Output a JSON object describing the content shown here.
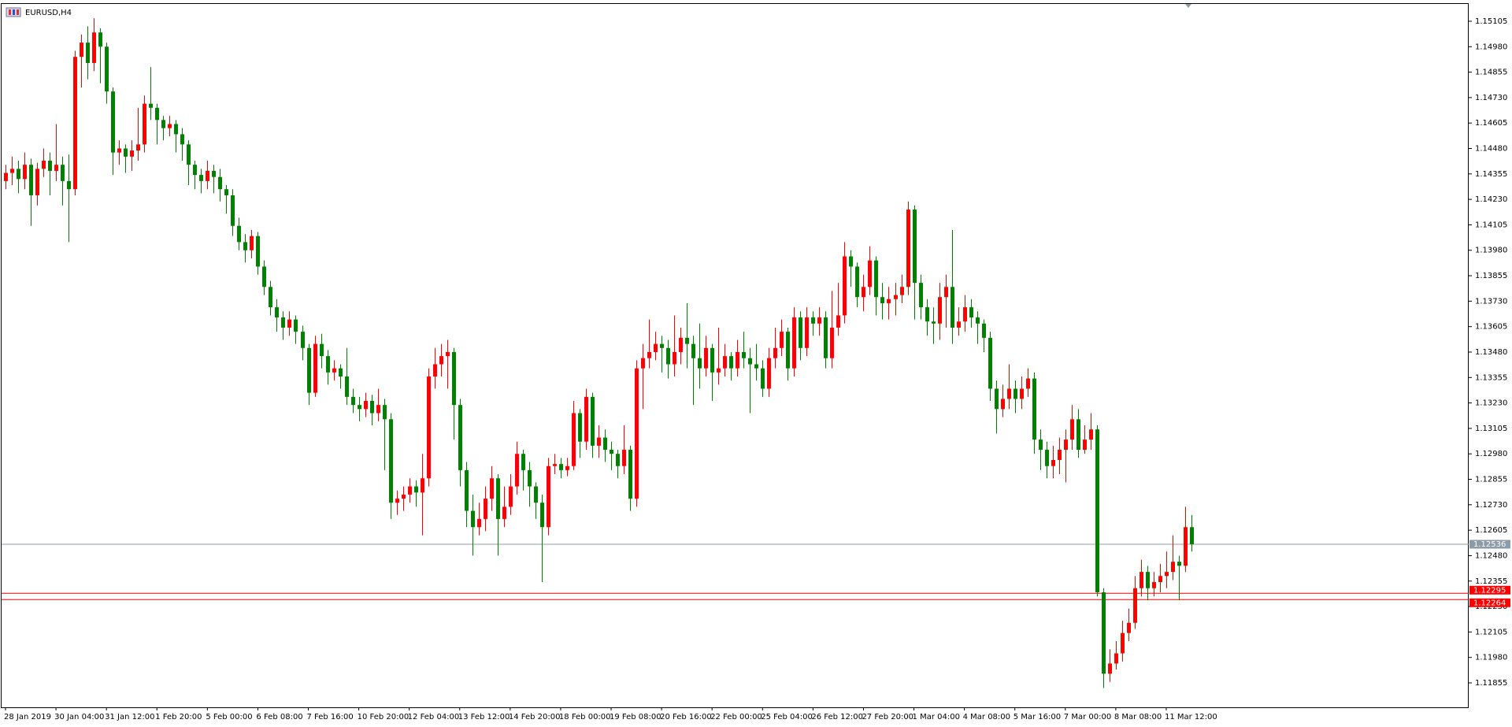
{
  "chart_data": {
    "type": "candlestick",
    "title": "EURUSD,H4",
    "up_color": "#ff0000",
    "down_color": "#008000",
    "ylim": [
      1.11735,
      1.1519
    ],
    "yticks": [
      1.15105,
      {
        "value": 1.1498,
        "label": "1.14980"
      },
      1.14855,
      {
        "value": 1.1473,
        "label": "1.14730"
      },
      1.14605,
      {
        "value": 1.1448,
        "label": "1.14480"
      },
      1.14355,
      {
        "value": 1.1423,
        "label": "1.14230"
      },
      1.14105,
      {
        "value": 1.1398,
        "label": "1.13980"
      },
      1.13855,
      {
        "value": 1.1373,
        "label": "1.13730"
      },
      1.13605,
      {
        "value": 1.1348,
        "label": "1.13480"
      },
      1.13355,
      {
        "value": 1.1323,
        "label": "1.13230"
      },
      1.13105,
      {
        "value": 1.1298,
        "label": "1.12980"
      },
      1.12855,
      {
        "value": 1.1273,
        "label": "1.12730"
      },
      1.12605,
      {
        "value": 1.1248,
        "label": "1.12480"
      },
      1.12355,
      {
        "value": 1.1223,
        "label": "1.12230"
      },
      1.12105,
      {
        "value": 1.1198,
        "label": "1.11980"
      },
      1.11855
    ],
    "levels": [
      {
        "value": 1.12536,
        "color": "#8c9ba8"
      },
      {
        "value": 1.12295,
        "color": "#ff0000"
      },
      {
        "value": 1.12264,
        "color": "#ff0000"
      }
    ],
    "categories": [
      "28 Jan 2019",
      null,
      null,
      null,
      null,
      null,
      null,
      null,
      "30 Jan 04:00",
      null,
      null,
      null,
      null,
      null,
      null,
      null,
      "31 Jan 12:00",
      null,
      null,
      null,
      null,
      null,
      null,
      null,
      "1 Feb 20:00",
      null,
      null,
      null,
      null,
      null,
      null,
      null,
      "5 Feb 00:00",
      null,
      null,
      null,
      null,
      null,
      null,
      null,
      "6 Feb 08:00",
      null,
      null,
      null,
      null,
      null,
      null,
      null,
      "7 Feb 16:00",
      null,
      null,
      null,
      null,
      null,
      null,
      null,
      "10 Feb 20:00",
      null,
      null,
      null,
      null,
      null,
      null,
      null,
      "12 Feb 04:00",
      null,
      null,
      null,
      null,
      null,
      null,
      null,
      "13 Feb 12:00",
      null,
      null,
      null,
      null,
      null,
      null,
      null,
      "14 Feb 20:00",
      null,
      null,
      null,
      null,
      null,
      null,
      null,
      "18 Feb 00:00",
      null,
      null,
      null,
      null,
      null,
      null,
      null,
      "19 Feb 08:00",
      null,
      null,
      null,
      null,
      null,
      null,
      null,
      "20 Feb 16:00",
      null,
      null,
      null,
      null,
      null,
      null,
      null,
      "22 Feb 00:00",
      null,
      null,
      null,
      null,
      null,
      null,
      null,
      "25 Feb 04:00",
      null,
      null,
      null,
      null,
      null,
      null,
      null,
      "26 Feb 12:00",
      null,
      null,
      null,
      null,
      null,
      null,
      null,
      "27 Feb 20:00",
      null,
      null,
      null,
      null,
      null,
      null,
      null,
      "1 Mar 04:00",
      null,
      null,
      null,
      null,
      null,
      null,
      null,
      "4 Mar 08:00",
      null,
      null,
      null,
      null,
      null,
      null,
      null,
      "5 Mar 16:00",
      null,
      null,
      null,
      null,
      null,
      null,
      null,
      "7 Mar 00:00",
      null,
      null,
      null,
      null,
      null,
      null,
      null,
      "8 Mar 08:00",
      null,
      null,
      null,
      null,
      null,
      null,
      null,
      "11 Mar 12:00",
      null,
      null,
      null,
      null
    ],
    "open": [
      1.1432,
      1.1436,
      1.1438,
      1.1433,
      1.144,
      1.1425,
      1.1438,
      1.1442,
      1.1437,
      1.144,
      1.1432,
      1.1428,
      1.1493,
      1.15,
      1.149,
      1.1505,
      1.1498,
      1.1476,
      1.1446,
      1.1448,
      1.1444,
      1.1447,
      1.145,
      1.147,
      1.1468,
      1.1462,
      1.1458,
      1.146,
      1.1455,
      1.145,
      1.144,
      1.1435,
      1.1432,
      1.1437,
      1.1434,
      1.1428,
      1.1425,
      1.141,
      1.1402,
      1.1398,
      1.1405,
      1.139,
      1.138,
      1.137,
      1.1365,
      1.136,
      1.1364,
      1.1358,
      1.135,
      1.1328,
      1.1352,
      1.1346,
      1.1338,
      1.134,
      1.1336,
      1.1326,
      1.1322,
      1.132,
      1.1324,
      1.1318,
      1.1322,
      1.1315,
      1.1274,
      1.1276,
      1.1278,
      1.1282,
      1.1279,
      1.1286,
      1.1336,
      1.1342,
      1.1346,
      1.1348,
      1.1322,
      1.129,
      1.127,
      1.1262,
      1.1266,
      1.1276,
      1.1286,
      1.1266,
      1.1272,
      1.1282,
      1.1298,
      1.129,
      1.1282,
      1.1274,
      1.1262,
      1.1292,
      1.1293,
      1.129,
      1.1292,
      1.1318,
      1.1304,
      1.1326,
      1.1302,
      1.1306,
      1.13,
      1.1298,
      1.1292,
      1.13,
      1.1276,
      1.134,
      1.1345,
      1.1348,
      1.1352,
      1.135,
      1.1342,
      1.1348,
      1.1355,
      1.1352,
      1.1345,
      1.134,
      1.135,
      1.1338,
      1.134,
      1.1346,
      1.134,
      1.1348,
      1.1345,
      1.1342,
      1.134,
      1.133,
      1.1345,
      1.135,
      1.1358,
      1.134,
      1.1365,
      1.135,
      1.1365,
      1.1362,
      1.1365,
      1.1345,
      1.136,
      1.1366,
      1.1395,
      1.139,
      1.1375,
      1.138,
      1.1393,
      1.1375,
      1.1372,
      1.1374,
      1.1376,
      1.138,
      1.1418,
      1.1382,
      1.137,
      1.1363,
      1.1362,
      1.1375,
      1.138,
      1.136,
      1.1363,
      1.137,
      1.1365,
      1.1362,
      1.1355,
      1.133,
      1.132,
      1.1325,
      1.133,
      1.1325,
      1.133,
      1.1335,
      1.1305,
      1.13,
      1.1292,
      1.1295,
      1.13,
      1.1305,
      1.1315,
      1.13,
      1.1305,
      1.131,
      1.123,
      1.119,
      1.1195,
      1.12,
      1.121,
      1.1215,
      1.1232,
      1.124,
      1.1232,
      1.1235,
      1.1238,
      1.124,
      1.1245,
      1.1243,
      1.1262
    ],
    "high": [
      1.144,
      1.1444,
      1.1442,
      1.1446,
      1.1443,
      1.1441,
      1.1448,
      1.1446,
      1.146,
      1.1444,
      1.1445,
      1.1496,
      1.1504,
      1.1508,
      1.1512,
      1.1507,
      1.15,
      1.1478,
      1.1452,
      1.145,
      1.1452,
      1.1468,
      1.1474,
      1.1488,
      1.147,
      1.1464,
      1.1464,
      1.1462,
      1.1458,
      1.1452,
      1.1442,
      1.1438,
      1.1442,
      1.144,
      1.1438,
      1.143,
      1.1428,
      1.1414,
      1.1406,
      1.1408,
      1.1407,
      1.1393,
      1.1383,
      1.1374,
      1.1368,
      1.1368,
      1.1366,
      1.1361,
      1.1352,
      1.1356,
      1.1357,
      1.1349,
      1.1344,
      1.1342,
      1.135,
      1.133,
      1.1326,
      1.1328,
      1.1327,
      1.133,
      1.1325,
      1.1318,
      1.128,
      1.1282,
      1.1286,
      1.1285,
      1.1298,
      1.134,
      1.135,
      1.1352,
      1.1354,
      1.135,
      1.1325,
      1.1294,
      1.1278,
      1.1274,
      1.1282,
      1.1292,
      1.1288,
      1.1282,
      1.1288,
      1.1304,
      1.13,
      1.1294,
      1.1284,
      1.1278,
      1.1296,
      1.1298,
      1.1296,
      1.1296,
      1.1324,
      1.132,
      1.133,
      1.1328,
      1.1312,
      1.131,
      1.1304,
      1.13,
      1.1312,
      1.1302,
      1.1344,
      1.1352,
      1.1364,
      1.1358,
      1.1356,
      1.1354,
      1.1366,
      1.136,
      1.1372,
      1.1356,
      1.1362,
      1.1356,
      1.1352,
      1.136,
      1.1352,
      1.1348,
      1.1354,
      1.1358,
      1.135,
      1.1352,
      1.1344,
      1.135,
      1.136,
      1.1364,
      1.136,
      1.137,
      1.1368,
      1.137,
      1.1368,
      1.137,
      1.1368,
      1.1378,
      1.1382,
      1.1402,
      1.1398,
      1.1392,
      1.1386,
      1.14,
      1.1395,
      1.1382,
      1.138,
      1.1382,
      1.1386,
      1.1422,
      1.142,
      1.1386,
      1.1374,
      1.137,
      1.1382,
      1.1386,
      1.1408,
      1.137,
      1.1376,
      1.1374,
      1.1368,
      1.1364,
      1.1358,
      1.1334,
      1.1332,
      1.1342,
      1.1334,
      1.1336,
      1.134,
      1.1338,
      1.131,
      1.1304,
      1.1302,
      1.1306,
      1.131,
      1.1322,
      1.132,
      1.1312,
      1.1318,
      1.1312,
      1.1232,
      1.1202,
      1.1206,
      1.1216,
      1.1222,
      1.1238,
      1.1246,
      1.1243,
      1.124,
      1.1244,
      1.125,
      1.1258,
      1.1248,
      1.1272,
      1.1268
    ],
    "low": [
      1.1428,
      1.143,
      1.1426,
      1.1428,
      1.141,
      1.142,
      1.1434,
      1.1425,
      1.1432,
      1.142,
      1.1402,
      1.1425,
      1.1478,
      1.1482,
      1.1486,
      1.148,
      1.147,
      1.1435,
      1.144,
      1.1436,
      1.1437,
      1.1442,
      1.1446,
      1.1462,
      1.145,
      1.1452,
      1.1454,
      1.1446,
      1.1442,
      1.143,
      1.1428,
      1.1426,
      1.1428,
      1.1426,
      1.1422,
      1.1416,
      1.1405,
      1.1398,
      1.1392,
      1.1394,
      1.1386,
      1.1376,
      1.1366,
      1.1358,
      1.1354,
      1.1356,
      1.1352,
      1.1344,
      1.1322,
      1.1326,
      1.134,
      1.1332,
      1.1334,
      1.133,
      1.1322,
      1.1318,
      1.1314,
      1.1316,
      1.1312,
      1.1314,
      1.129,
      1.1266,
      1.1268,
      1.127,
      1.1274,
      1.1272,
      1.1258,
      1.1282,
      1.133,
      1.1336,
      1.133,
      1.1305,
      1.1282,
      1.1262,
      1.1248,
      1.1258,
      1.126,
      1.127,
      1.1248,
      1.1262,
      1.1268,
      1.1278,
      1.128,
      1.1272,
      1.1266,
      1.1235,
      1.1258,
      1.1288,
      1.1286,
      1.1287,
      1.129,
      1.1296,
      1.13,
      1.1296,
      1.1296,
      1.1294,
      1.129,
      1.1286,
      1.1288,
      1.127,
      1.1272,
      1.132,
      1.134,
      1.1344,
      1.1338,
      1.1335,
      1.1336,
      1.1342,
      1.134,
      1.1322,
      1.133,
      1.1336,
      1.1324,
      1.1332,
      1.1336,
      1.1334,
      1.1336,
      1.134,
      1.1318,
      1.1334,
      1.1326,
      1.1326,
      1.134,
      1.1346,
      1.1334,
      1.1336,
      1.1344,
      1.1346,
      1.1356,
      1.1356,
      1.134,
      1.134,
      1.1356,
      1.1362,
      1.138,
      1.137,
      1.1368,
      1.1376,
      1.1366,
      1.1364,
      1.1364,
      1.1366,
      1.1372,
      1.1376,
      1.1364,
      1.1364,
      1.1356,
      1.1352,
      1.1354,
      1.136,
      1.1352,
      1.1356,
      1.1358,
      1.136,
      1.1352,
      1.1348,
      1.1324,
      1.1308,
      1.1316,
      1.132,
      1.1318,
      1.132,
      1.1326,
      1.1298,
      1.129,
      1.1286,
      1.1286,
      1.1288,
      1.1284,
      1.13,
      1.1296,
      1.1298,
      1.13,
      1.1228,
      1.1183,
      1.1186,
      1.1192,
      1.1196,
      1.1206,
      1.1212,
      1.1228,
      1.1226,
      1.1228,
      1.123,
      1.1232,
      1.1236,
      1.1226,
      1.124,
      1.125
    ],
    "close": [
      1.1436,
      1.1438,
      1.1433,
      1.144,
      1.1425,
      1.1438,
      1.1442,
      1.1437,
      1.144,
      1.1432,
      1.1428,
      1.1493,
      1.15,
      1.149,
      1.1505,
      1.1498,
      1.1476,
      1.1446,
      1.1448,
      1.1444,
      1.1447,
      1.145,
      1.147,
      1.1468,
      1.1462,
      1.1458,
      1.146,
      1.1455,
      1.145,
      1.144,
      1.1435,
      1.1432,
      1.1437,
      1.1434,
      1.1428,
      1.1425,
      1.141,
      1.1402,
      1.1398,
      1.1405,
      1.139,
      1.138,
      1.137,
      1.1365,
      1.136,
      1.1364,
      1.1358,
      1.135,
      1.1328,
      1.1352,
      1.1346,
      1.1338,
      1.134,
      1.1336,
      1.1326,
      1.1322,
      1.132,
      1.1324,
      1.1318,
      1.1322,
      1.1315,
      1.1274,
      1.1276,
      1.1278,
      1.1282,
      1.1279,
      1.1286,
      1.1336,
      1.1342,
      1.1346,
      1.1348,
      1.1322,
      1.129,
      1.127,
      1.1262,
      1.1266,
      1.1276,
      1.1286,
      1.1266,
      1.1272,
      1.1282,
      1.1298,
      1.129,
      1.1282,
      1.1274,
      1.1262,
      1.1292,
      1.1293,
      1.129,
      1.1292,
      1.1318,
      1.1304,
      1.1326,
      1.1302,
      1.1306,
      1.13,
      1.1298,
      1.1292,
      1.13,
      1.1276,
      1.134,
      1.1345,
      1.1348,
      1.1352,
      1.135,
      1.1342,
      1.1348,
      1.1355,
      1.1352,
      1.1345,
      1.134,
      1.135,
      1.1338,
      1.134,
      1.1346,
      1.134,
      1.1348,
      1.1345,
      1.1342,
      1.134,
      1.133,
      1.1345,
      1.135,
      1.1358,
      1.134,
      1.1365,
      1.135,
      1.1365,
      1.1362,
      1.1365,
      1.1345,
      1.136,
      1.1366,
      1.1395,
      1.139,
      1.1375,
      1.138,
      1.1393,
      1.1375,
      1.1372,
      1.1374,
      1.1376,
      1.138,
      1.1418,
      1.1382,
      1.137,
      1.1363,
      1.1362,
      1.1375,
      1.138,
      1.136,
      1.1363,
      1.137,
      1.1365,
      1.1362,
      1.1355,
      1.133,
      1.132,
      1.1325,
      1.133,
      1.1325,
      1.133,
      1.1335,
      1.1305,
      1.13,
      1.1292,
      1.1295,
      1.13,
      1.1305,
      1.1315,
      1.13,
      1.1305,
      1.131,
      1.123,
      1.119,
      1.1195,
      1.12,
      1.121,
      1.1215,
      1.1232,
      1.124,
      1.1232,
      1.1235,
      1.1238,
      1.124,
      1.1245,
      1.1243,
      1.1262,
      1.12536
    ]
  }
}
